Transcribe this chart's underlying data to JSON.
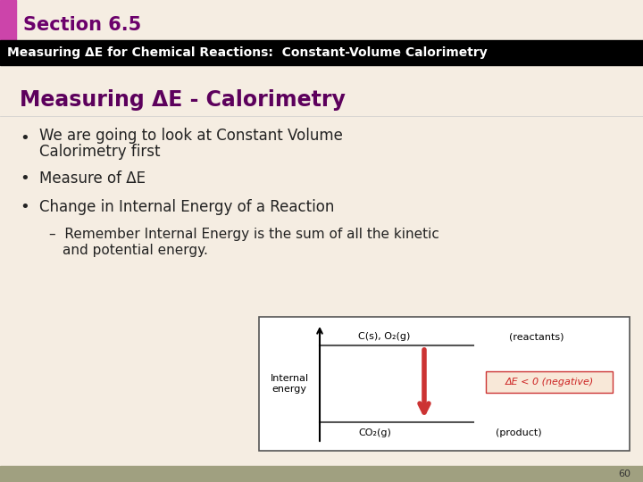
{
  "bg_top_color": "#f5ede2",
  "section_bar_color": "#cc44aa",
  "section_title": "Section 6.5",
  "section_title_color": "#6b006b",
  "black_bar_text": "Measuring ΔE for Chemical Reactions:  Constant-Volume Calorimetry",
  "black_bar_bg": "#000000",
  "black_bar_text_color": "#ffffff",
  "slide_title": "Measuring ΔE - Calorimetry",
  "slide_title_color": "#5c005c",
  "bullet_color": "#222222",
  "page_number": "60",
  "footer_bg": "#a0a080",
  "diagram_bg": "#ffffff",
  "diagram_border": "#555555",
  "reactant_label": "C(s), O₂(g)",
  "reactant_side_label": "(reactants)",
  "product_label": "CO₂(g)",
  "product_side_label": "(product)",
  "y_axis_label": "Internal\nenergy",
  "delta_label": "ΔE < 0 (negative)",
  "delta_label_bg": "#f8e8d8",
  "delta_label_color": "#cc2222",
  "arrow_color": "#cc3333",
  "content_bg": "#f5ede2"
}
